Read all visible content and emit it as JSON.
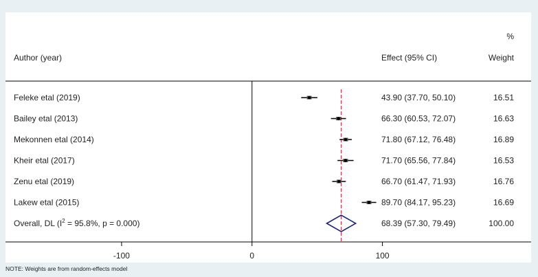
{
  "chart_data": {
    "type": "forest",
    "headers": {
      "author": "Author (year)",
      "effect": "Effect (95% CI)",
      "weight_top": "%",
      "weight": "Weight"
    },
    "studies": [
      {
        "label": "Feleke etal (2019)",
        "effect": 43.9,
        "lo": 37.7,
        "hi": 50.1,
        "ci_text": "43.90 (37.70, 50.10)",
        "weight": "16.51"
      },
      {
        "label": "Bailey etal (2013)",
        "effect": 66.3,
        "lo": 60.53,
        "hi": 72.07,
        "ci_text": "66.30 (60.53, 72.07)",
        "weight": "16.63"
      },
      {
        "label": "Mekonnen etal (2014)",
        "effect": 71.8,
        "lo": 67.12,
        "hi": 76.48,
        "ci_text": "71.80 (67.12, 76.48)",
        "weight": "16.89"
      },
      {
        "label": "Kheir etal (2017)",
        "effect": 71.7,
        "lo": 65.56,
        "hi": 77.84,
        "ci_text": "71.70 (65.56, 77.84)",
        "weight": "16.53"
      },
      {
        "label": "Zenu etal (2019)",
        "effect": 66.7,
        "lo": 61.47,
        "hi": 71.93,
        "ci_text": "66.70 (61.47, 71.93)",
        "weight": "16.76"
      },
      {
        "label": "Lakew etal (2015)",
        "effect": 89.7,
        "lo": 84.17,
        "hi": 95.23,
        "ci_text": "89.70 (84.17, 95.23)",
        "weight": "16.69"
      }
    ],
    "overall": {
      "label_prefix": "Overall, DL (I",
      "label_sup": "2",
      "label_suffix": " = 95.8%, p = 0.000)",
      "effect": 68.39,
      "lo": 57.3,
      "hi": 79.49,
      "ci_text": "68.39 (57.30, 79.49)",
      "weight": "100.00"
    },
    "xaxis": {
      "ticks": [
        -100,
        0,
        100
      ],
      "tick_labels": [
        "-100",
        "0",
        "100"
      ],
      "range": [
        -189,
        214
      ]
    },
    "null_line": 0,
    "colors": {
      "point": "#000000",
      "diamond": "#1a237e",
      "ref_line": "#c0203a"
    },
    "note": "NOTE: Weights are from random-effects model"
  }
}
